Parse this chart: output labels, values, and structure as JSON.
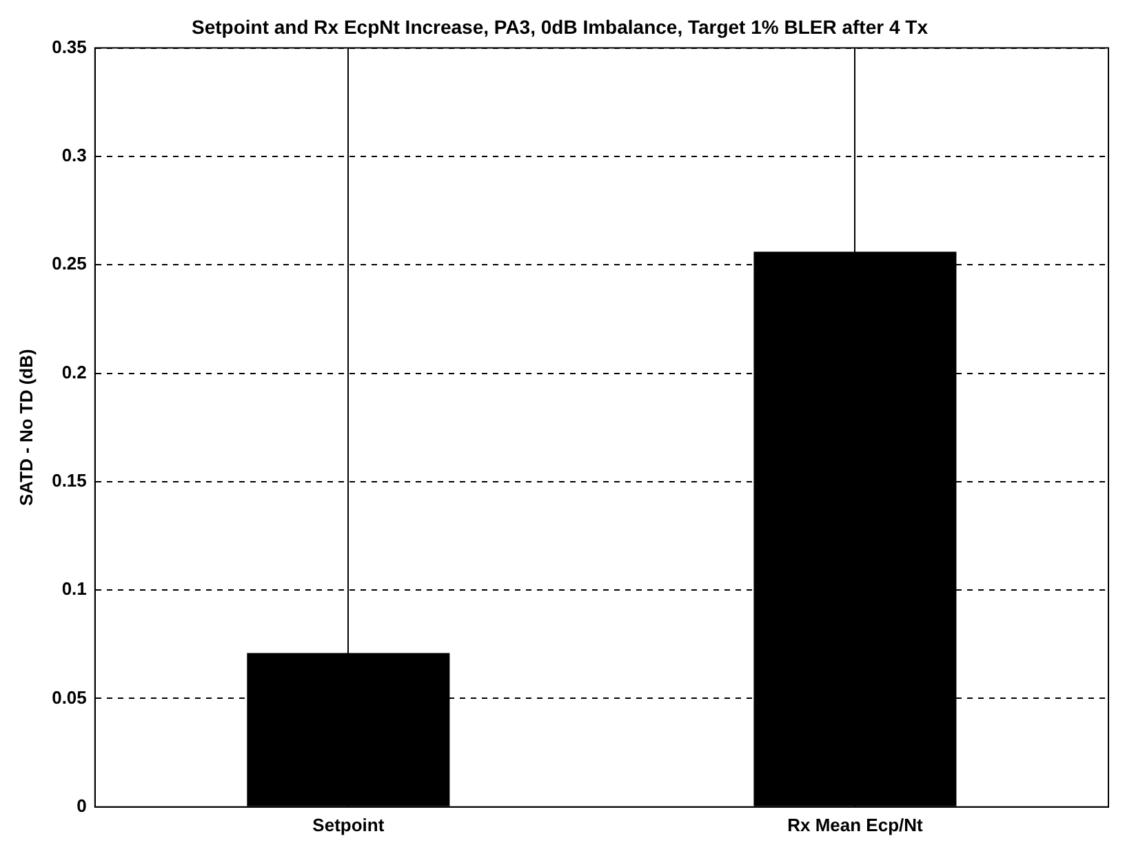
{
  "chart_data": {
    "type": "bar",
    "title": "Setpoint and Rx EcpNt Increase, PA3, 0dB Imbalance, Target 1% BLER after 4 Tx",
    "ylabel": "SATD - No TD (dB)",
    "categories": [
      "Setpoint",
      "Rx Mean Ecp/Nt"
    ],
    "values": [
      0.071,
      0.256
    ],
    "color": "#000000",
    "ylim": [
      0,
      0.35
    ],
    "yticks": [
      0,
      0.05,
      0.1,
      0.15,
      0.2,
      0.25,
      0.3,
      0.35
    ],
    "grid": true
  }
}
